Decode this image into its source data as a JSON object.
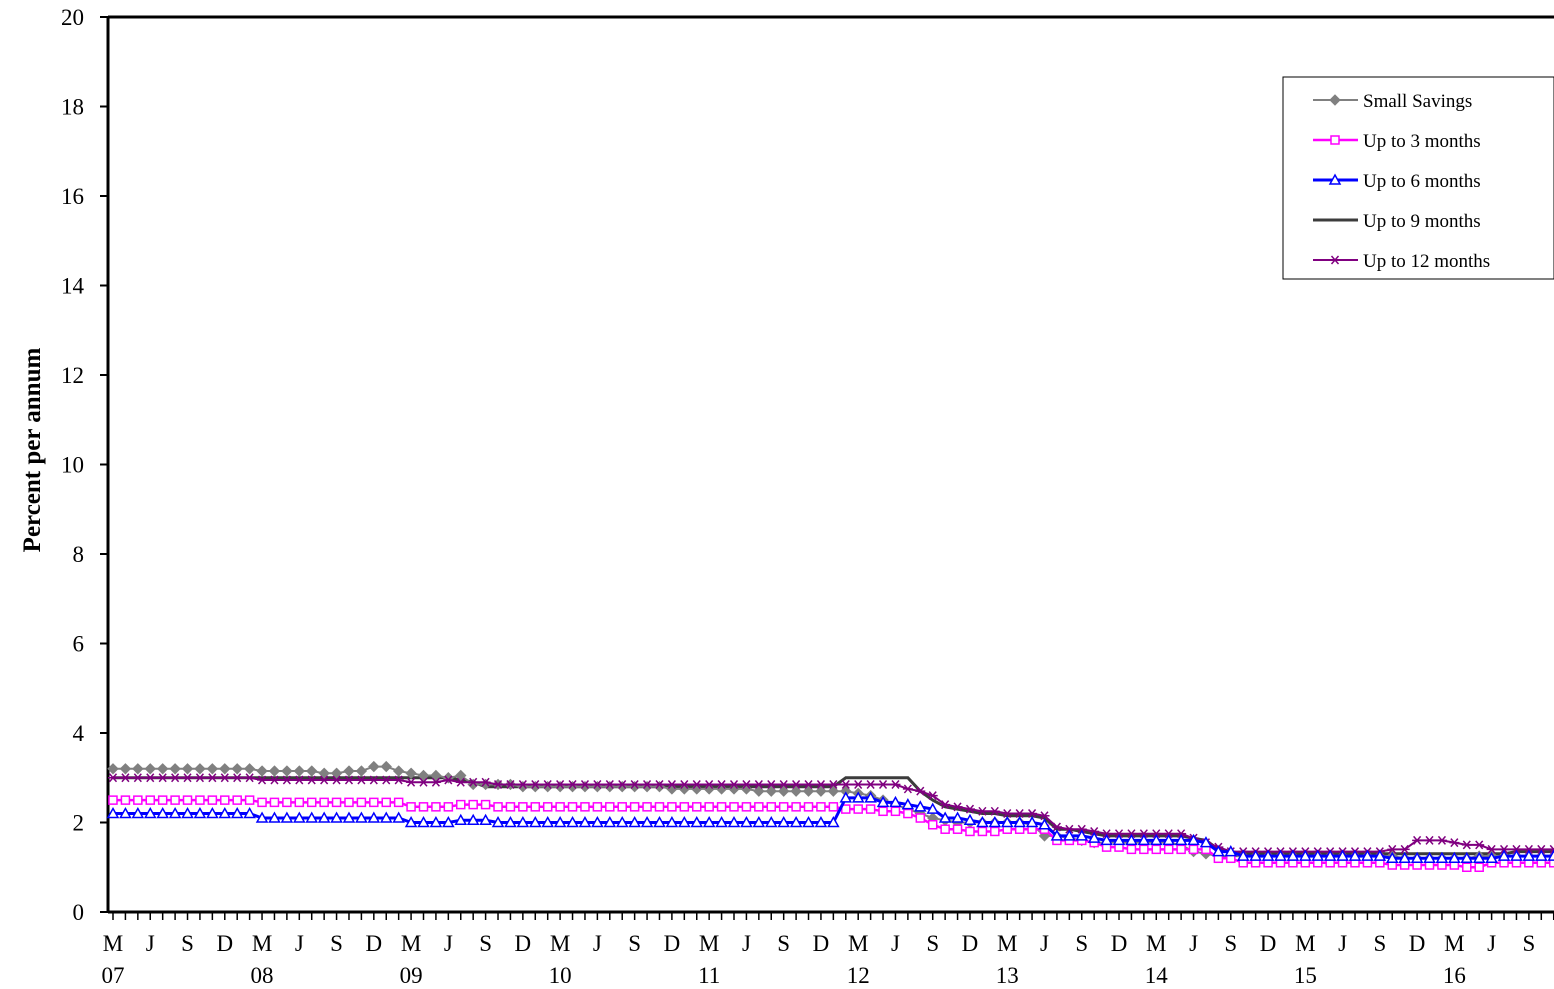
{
  "chart_data": {
    "type": "line",
    "title": "",
    "xlabel": "",
    "ylabel": "Percent per annum",
    "ylim": [
      0,
      20
    ],
    "y_ticks": [
      0,
      2,
      4,
      6,
      8,
      10,
      12,
      14,
      16,
      18,
      20
    ],
    "x_start": "2007-03",
    "x_end": "2016-11",
    "x_frequency": "monthly",
    "x_ticks_month": [
      "M",
      "J",
      "S",
      "D",
      "M",
      "J",
      "S",
      "D",
      "M",
      "J",
      "S",
      "D",
      "M",
      "J",
      "S",
      "D",
      "M",
      "J",
      "S",
      "D",
      "M",
      "J",
      "S",
      "D",
      "M",
      "J",
      "S",
      "D",
      "M",
      "J",
      "S",
      "D",
      "M",
      "J",
      "S",
      "D",
      "M",
      "J",
      "S"
    ],
    "x_ticks_year": [
      "07",
      "08",
      "09",
      "10",
      "11",
      "12",
      "13",
      "14",
      "15",
      "16"
    ],
    "grid": false,
    "legend_position": "top-right",
    "series": [
      {
        "name": "Small Savings",
        "color": "#808080",
        "marker": "diamond",
        "values": [
          3.2,
          3.2,
          3.2,
          3.2,
          3.2,
          3.2,
          3.2,
          3.2,
          3.2,
          3.2,
          3.2,
          3.2,
          3.15,
          3.15,
          3.15,
          3.15,
          3.15,
          3.1,
          3.1,
          3.15,
          3.15,
          3.25,
          3.25,
          3.15,
          3.1,
          3.05,
          3.05,
          3.0,
          3.05,
          2.85,
          2.85,
          2.85,
          2.85,
          2.8,
          2.8,
          2.8,
          2.8,
          2.8,
          2.8,
          2.8,
          2.8,
          2.8,
          2.8,
          2.8,
          2.8,
          2.75,
          2.75,
          2.75,
          2.75,
          2.75,
          2.75,
          2.75,
          2.7,
          2.7,
          2.7,
          2.7,
          2.7,
          2.7,
          2.7,
          2.7,
          2.65,
          2.6,
          2.5,
          2.4,
          2.3,
          2.2,
          2.1,
          2.05,
          2.0,
          2.0,
          2.0,
          2.0,
          2.0,
          2.0,
          1.95,
          1.7,
          1.7,
          1.65,
          1.6,
          1.55,
          1.55,
          1.55,
          1.55,
          1.55,
          1.55,
          1.55,
          1.5,
          1.35,
          1.3,
          1.25,
          1.25,
          1.25,
          1.25,
          1.25,
          1.25,
          1.25,
          1.25,
          1.25,
          1.25,
          1.25,
          1.25,
          1.25,
          1.25,
          1.25,
          1.2,
          1.2,
          1.2,
          1.2,
          1.2,
          1.2,
          1.25,
          1.25,
          1.25,
          1.25,
          1.25,
          1.25,
          1.25,
          1.25,
          1.25,
          1.25,
          1.25,
          1.25,
          1.25,
          1.25,
          1.25,
          1.25,
          1.25,
          1.25,
          1.25,
          1.25,
          1.25,
          1.25,
          1.25,
          1.25
        ]
      },
      {
        "name": "Up to 3 months",
        "color": "#ff00ff",
        "marker": "square-open",
        "values": [
          2.5,
          2.5,
          2.5,
          2.5,
          2.5,
          2.5,
          2.5,
          2.5,
          2.5,
          2.5,
          2.5,
          2.5,
          2.45,
          2.45,
          2.45,
          2.45,
          2.45,
          2.45,
          2.45,
          2.45,
          2.45,
          2.45,
          2.45,
          2.45,
          2.35,
          2.35,
          2.35,
          2.35,
          2.4,
          2.4,
          2.4,
          2.35,
          2.35,
          2.35,
          2.35,
          2.35,
          2.35,
          2.35,
          2.35,
          2.35,
          2.35,
          2.35,
          2.35,
          2.35,
          2.35,
          2.35,
          2.35,
          2.35,
          2.35,
          2.35,
          2.35,
          2.35,
          2.35,
          2.35,
          2.35,
          2.35,
          2.35,
          2.35,
          2.35,
          2.3,
          2.3,
          2.3,
          2.25,
          2.25,
          2.2,
          2.1,
          1.95,
          1.85,
          1.85,
          1.8,
          1.8,
          1.8,
          1.85,
          1.85,
          1.85,
          1.85,
          1.6,
          1.6,
          1.6,
          1.55,
          1.45,
          1.45,
          1.4,
          1.4,
          1.4,
          1.4,
          1.4,
          1.4,
          1.4,
          1.2,
          1.2,
          1.1,
          1.1,
          1.1,
          1.1,
          1.1,
          1.1,
          1.1,
          1.1,
          1.1,
          1.1,
          1.1,
          1.1,
          1.05,
          1.05,
          1.05,
          1.05,
          1.05,
          1.05,
          1.0,
          1.0,
          1.1,
          1.1,
          1.1,
          1.1,
          1.1,
          1.1,
          1.1,
          1.1,
          1.1,
          1.15,
          1.15,
          1.15,
          1.15,
          1.15,
          1.15,
          1.15,
          1.15,
          1.15,
          1.2,
          1.2,
          1.2,
          1.2,
          1.2,
          1.2,
          1.2
        ]
      },
      {
        "name": "Up to 6 months",
        "color": "#0000ff",
        "marker": "triangle-open",
        "values": [
          2.2,
          2.2,
          2.2,
          2.2,
          2.2,
          2.2,
          2.2,
          2.2,
          2.2,
          2.2,
          2.2,
          2.2,
          2.1,
          2.1,
          2.1,
          2.1,
          2.1,
          2.1,
          2.1,
          2.1,
          2.1,
          2.1,
          2.1,
          2.1,
          2.0,
          2.0,
          2.0,
          2.0,
          2.05,
          2.05,
          2.05,
          2.0,
          2.0,
          2.0,
          2.0,
          2.0,
          2.0,
          2.0,
          2.0,
          2.0,
          2.0,
          2.0,
          2.0,
          2.0,
          2.0,
          2.0,
          2.0,
          2.0,
          2.0,
          2.0,
          2.0,
          2.0,
          2.0,
          2.0,
          2.0,
          2.0,
          2.0,
          2.0,
          2.0,
          2.55,
          2.55,
          2.55,
          2.45,
          2.45,
          2.4,
          2.35,
          2.3,
          2.1,
          2.1,
          2.05,
          2.0,
          2.0,
          2.0,
          2.0,
          2.0,
          1.95,
          1.7,
          1.7,
          1.7,
          1.65,
          1.6,
          1.6,
          1.6,
          1.6,
          1.6,
          1.6,
          1.6,
          1.6,
          1.55,
          1.35,
          1.35,
          1.25,
          1.25,
          1.25,
          1.25,
          1.25,
          1.25,
          1.25,
          1.25,
          1.25,
          1.25,
          1.25,
          1.25,
          1.2,
          1.2,
          1.2,
          1.2,
          1.2,
          1.2,
          1.2,
          1.2,
          1.2,
          1.25,
          1.25,
          1.25,
          1.25,
          1.25,
          1.25,
          1.25,
          1.25,
          1.25,
          1.25,
          1.25,
          1.25,
          1.25,
          1.25,
          1.25,
          1.25,
          1.25,
          1.3,
          1.3,
          1.3,
          1.3,
          1.3,
          1.3,
          1.3
        ]
      },
      {
        "name": "Up to 9 months",
        "color": "#3c3c3c",
        "marker": "none",
        "values": [
          3.0,
          3.0,
          3.0,
          3.0,
          3.0,
          3.0,
          3.0,
          3.0,
          3.0,
          3.0,
          3.0,
          3.0,
          3.0,
          3.0,
          3.0,
          3.0,
          3.0,
          3.0,
          3.0,
          3.0,
          3.0,
          3.0,
          3.0,
          3.0,
          3.0,
          3.0,
          3.0,
          3.0,
          2.95,
          2.9,
          2.8,
          2.8,
          2.8,
          2.8,
          2.8,
          2.8,
          2.8,
          2.8,
          2.8,
          2.8,
          2.8,
          2.8,
          2.8,
          2.8,
          2.8,
          2.8,
          2.8,
          2.8,
          2.8,
          2.8,
          2.8,
          2.8,
          2.8,
          2.8,
          2.8,
          2.8,
          2.8,
          2.8,
          2.8,
          3.0,
          3.0,
          3.0,
          3.0,
          3.0,
          3.0,
          2.7,
          2.5,
          2.35,
          2.3,
          2.25,
          2.2,
          2.2,
          2.15,
          2.15,
          2.15,
          2.1,
          1.85,
          1.85,
          1.8,
          1.75,
          1.7,
          1.7,
          1.7,
          1.7,
          1.7,
          1.7,
          1.7,
          1.65,
          1.6,
          1.4,
          1.35,
          1.3,
          1.3,
          1.3,
          1.3,
          1.3,
          1.3,
          1.3,
          1.3,
          1.3,
          1.3,
          1.3,
          1.3,
          1.3,
          1.3,
          1.3,
          1.3,
          1.3,
          1.3,
          1.3,
          1.3,
          1.3,
          1.3,
          1.35,
          1.35,
          1.35,
          1.35,
          1.35,
          1.35,
          1.35,
          1.35,
          1.35,
          1.35,
          1.35,
          1.35,
          1.35,
          1.35,
          1.35,
          1.35,
          1.35,
          1.4,
          1.4,
          1.4,
          1.4,
          1.4,
          1.4,
          1.4
        ]
      },
      {
        "name": "Up to 12 months",
        "color": "#800080",
        "marker": "asterisk",
        "values": [
          3.0,
          3.0,
          3.0,
          3.0,
          3.0,
          3.0,
          3.0,
          3.0,
          3.0,
          3.0,
          3.0,
          3.0,
          2.95,
          2.95,
          2.95,
          2.95,
          2.95,
          2.95,
          2.95,
          2.95,
          2.95,
          2.95,
          2.95,
          2.95,
          2.9,
          2.9,
          2.9,
          2.95,
          2.9,
          2.9,
          2.9,
          2.85,
          2.85,
          2.85,
          2.85,
          2.85,
          2.85,
          2.85,
          2.85,
          2.85,
          2.85,
          2.85,
          2.85,
          2.85,
          2.85,
          2.85,
          2.85,
          2.85,
          2.85,
          2.85,
          2.85,
          2.85,
          2.85,
          2.85,
          2.85,
          2.85,
          2.85,
          2.85,
          2.85,
          2.85,
          2.85,
          2.85,
          2.85,
          2.85,
          2.75,
          2.7,
          2.6,
          2.4,
          2.35,
          2.3,
          2.25,
          2.25,
          2.2,
          2.2,
          2.2,
          2.15,
          1.9,
          1.85,
          1.85,
          1.8,
          1.75,
          1.75,
          1.75,
          1.75,
          1.75,
          1.75,
          1.75,
          1.65,
          1.55,
          1.45,
          1.35,
          1.35,
          1.35,
          1.35,
          1.35,
          1.35,
          1.35,
          1.35,
          1.35,
          1.35,
          1.35,
          1.35,
          1.35,
          1.4,
          1.4,
          1.6,
          1.6,
          1.6,
          1.55,
          1.5,
          1.5,
          1.4,
          1.4,
          1.4,
          1.4,
          1.4,
          1.4,
          1.4,
          1.4,
          1.4,
          1.4,
          1.45,
          1.45,
          1.45,
          1.45,
          1.45,
          1.45,
          1.45,
          1.45,
          1.45,
          1.5,
          1.5,
          1.5,
          1.5,
          1.5,
          1.5,
          1.5
        ]
      }
    ]
  }
}
